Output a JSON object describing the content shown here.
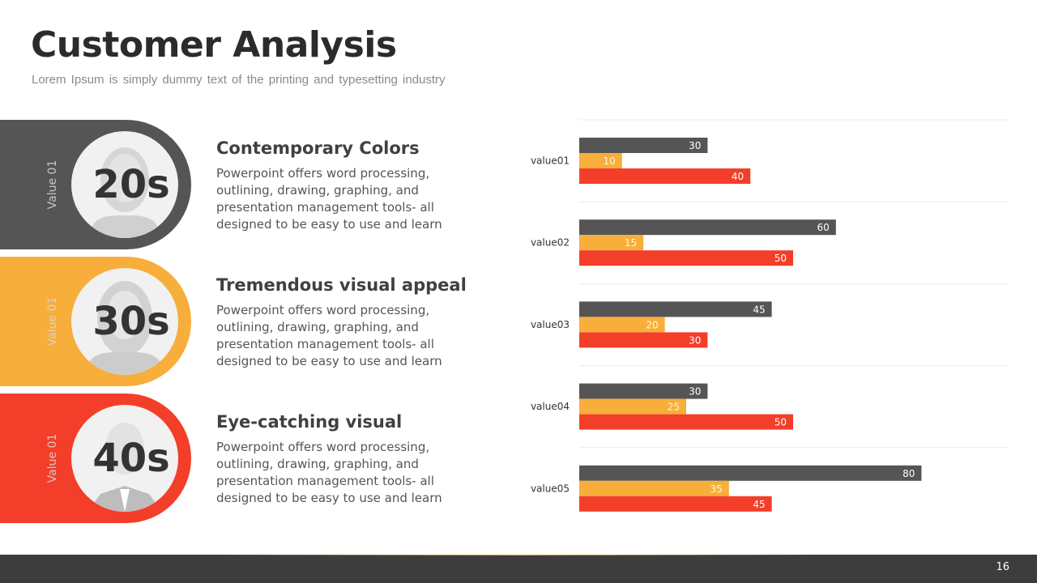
{
  "title": "Customer Analysis",
  "subtitle": "Lorem Ipsum is simply dummy  text of the printing and typesetting industry",
  "colors": {
    "dark": "#555555",
    "yellow": "#f7ae3b",
    "red": "#f33e2a"
  },
  "groups": [
    {
      "label": "Value 01",
      "age": "20s",
      "title": "Contemporary Colors",
      "text": "Powerpoint offers word processing, outlining, drawing, graphing, and presentation management tools- all designed to be easy to use and learn",
      "icon": "woman-photo"
    },
    {
      "label": "Value 01",
      "age": "30s",
      "title": "Tremendous visual appeal",
      "text": "Powerpoint offers word processing, outlining, drawing, graphing, and presentation management tools- all designed to be easy to use and learn",
      "icon": "woman-photo"
    },
    {
      "label": "Value 01",
      "age": "40s",
      "title": "Eye-catching visual",
      "text": "Powerpoint offers word processing, outlining, drawing, graphing, and presentation management tools- all designed to be easy to use and learn",
      "icon": "man-photo"
    }
  ],
  "chart_data": {
    "type": "bar",
    "orientation": "horizontal",
    "categories": [
      "value01",
      "value02",
      "value03",
      "value04",
      "value05"
    ],
    "series": [
      {
        "values": [
          30,
          60,
          45,
          30,
          80
        ],
        "color": "#555555"
      },
      {
        "values": [
          10,
          15,
          20,
          25,
          35
        ],
        "color": "#f7ae3b"
      },
      {
        "values": [
          40,
          50,
          30,
          50,
          45
        ],
        "color": "#f33e2a"
      }
    ],
    "xlim": [
      0,
      100
    ],
    "grid": true,
    "data_labels": true
  },
  "page_number": "16"
}
